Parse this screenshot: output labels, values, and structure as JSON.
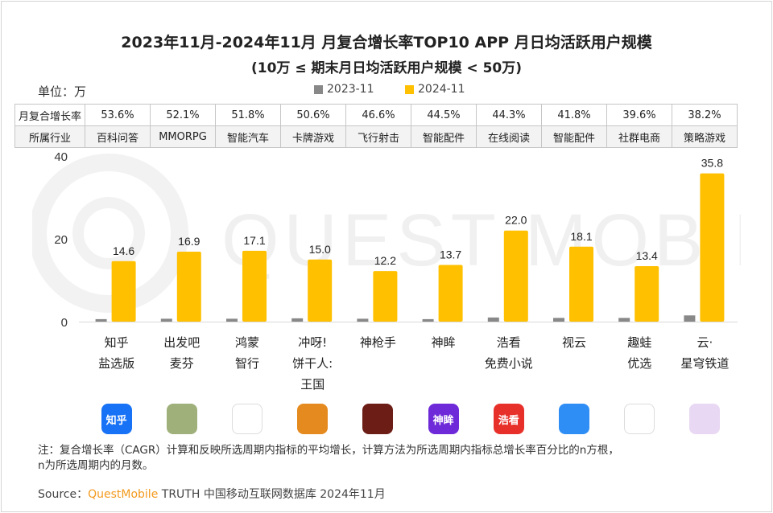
{
  "title": "2023年11月-2024年11月 月复合增长率TOP10 APP 月日均活跃用户规模",
  "subtitle": "(10万 ≤ 期末月日均活跃用户规模 < 50万)",
  "unit_label": "单位：万",
  "legend": [
    {
      "label": "2023-11",
      "color": "#888888"
    },
    {
      "label": "2024-11",
      "color": "#ffc000"
    }
  ],
  "table": {
    "row1_header": "月复合增长率",
    "row2_header": "所属行业",
    "growth": [
      "53.6%",
      "52.1%",
      "51.8%",
      "50.6%",
      "46.6%",
      "44.5%",
      "44.3%",
      "41.8%",
      "39.6%",
      "38.2%"
    ],
    "industry": [
      "百科问答",
      "MMORPG",
      "智能汽车",
      "卡牌游戏",
      "飞行射击",
      "智能配件",
      "在线阅读",
      "智能配件",
      "社群电商",
      "策略游戏"
    ]
  },
  "chart_data": {
    "type": "bar",
    "title": "2023年11月-2024年11月 月复合增长率TOP10 APP 月日均活跃用户规模",
    "subtitle": "(10万 ≤ 期末月日均活跃用户规模 < 50万)",
    "ylabel": "单位：万",
    "ylim": [
      0,
      40
    ],
    "yticks": [
      0,
      20,
      40
    ],
    "grid": false,
    "legend_position": "top",
    "categories": [
      [
        "知乎",
        "盐选版"
      ],
      [
        "出发吧",
        "麦芬"
      ],
      [
        "鸿蒙",
        "智行"
      ],
      [
        "冲呀!",
        "饼干人:",
        "王国"
      ],
      [
        "神枪手"
      ],
      [
        "神眸"
      ],
      [
        "浩看",
        "免费小说"
      ],
      [
        "视云"
      ],
      [
        "趣蛙",
        "优选"
      ],
      [
        "云·",
        "星穹铁道"
      ]
    ],
    "series": [
      {
        "name": "2023-11",
        "color": "#888888",
        "values": [
          0.6,
          0.7,
          0.7,
          0.8,
          0.7,
          0.6,
          1.0,
          0.9,
          0.9,
          1.5
        ]
      },
      {
        "name": "2024-11",
        "color": "#ffc000",
        "values": [
          14.6,
          16.9,
          17.1,
          15.0,
          12.2,
          13.7,
          22.0,
          18.1,
          13.4,
          35.8
        ]
      }
    ],
    "value_labels": [
      "14.6",
      "16.9",
      "17.1",
      "15.0",
      "12.2",
      "13.7",
      "22.0",
      "18.1",
      "13.4",
      "35.8"
    ]
  },
  "app_icons": [
    {
      "name": "zhihu-app-icon",
      "text": "知乎",
      "bg": "#1772f6",
      "fg": "#ffffff"
    },
    {
      "name": "muffin-app-icon",
      "text": "",
      "bg": "#9fb07a",
      "fg": "#ffffff"
    },
    {
      "name": "hongmeng-app-icon",
      "text": "",
      "bg": "#ffffff",
      "fg": "#222222"
    },
    {
      "name": "cookie-run-app-icon",
      "text": "",
      "bg": "#e58a1f",
      "fg": "#ffffff"
    },
    {
      "name": "sharpshooter-app-icon",
      "text": "",
      "bg": "#6b1d16",
      "fg": "#ffffff"
    },
    {
      "name": "shenmou-app-icon",
      "text": "神眸",
      "bg": "#6e2ad8",
      "fg": "#ffffff"
    },
    {
      "name": "haokan-app-icon",
      "text": "浩看",
      "bg": "#e8302a",
      "fg": "#ffffff"
    },
    {
      "name": "shiyun-app-icon",
      "text": "",
      "bg": "#2f8ef5",
      "fg": "#ffffff"
    },
    {
      "name": "quwa-app-icon",
      "text": "",
      "bg": "#ffffff",
      "fg": "#e8302a"
    },
    {
      "name": "starrail-app-icon",
      "text": "",
      "bg": "#e9d8f3",
      "fg": "#ffffff"
    }
  ],
  "note": "注：复合增长率（CAGR）计算和反映所选周期内指标的平均增长，计算方法为所选周期内指标总增长率百分比的n方根，",
  "note2": "n为所选周期内的月数。",
  "source_prefix": "Source：",
  "source_brand": "QuestMobile",
  "source_rest": " TRUTH 中国移动互联网数据库 2024年11月",
  "watermark": "QUEST MOBILE"
}
